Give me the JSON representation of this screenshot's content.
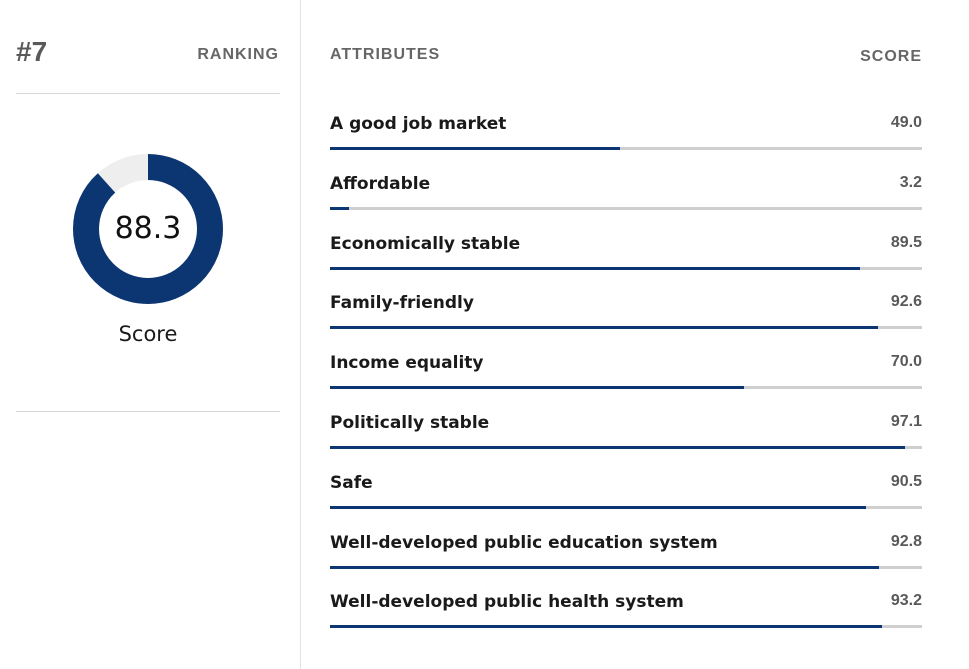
{
  "ranking": {
    "rank": "#7",
    "label": "RANKING"
  },
  "overall": {
    "score": 88.3,
    "score_text": "88.3",
    "score_label": "Score"
  },
  "headers": {
    "attributes": "ATTRIBUTES",
    "score": "SCORE"
  },
  "attributes": [
    {
      "label": "A good job market",
      "score": 49.0,
      "score_text": "49.0"
    },
    {
      "label": "Affordable",
      "score": 3.2,
      "score_text": "3.2"
    },
    {
      "label": "Economically stable",
      "score": 89.5,
      "score_text": "89.5"
    },
    {
      "label": "Family-friendly",
      "score": 92.6,
      "score_text": "92.6"
    },
    {
      "label": "Income equality",
      "score": 70.0,
      "score_text": "70.0"
    },
    {
      "label": "Politically stable",
      "score": 97.1,
      "score_text": "97.1"
    },
    {
      "label": "Safe",
      "score": 90.5,
      "score_text": "90.5"
    },
    {
      "label": "Well-developed public education system",
      "score": 92.8,
      "score_text": "92.8"
    },
    {
      "label": "Well-developed public health system",
      "score": 93.2,
      "score_text": "93.2"
    }
  ],
  "colors": {
    "accent": "#0c3672",
    "track": "#cfcfcf",
    "donut_track": "#eeeeee"
  }
}
